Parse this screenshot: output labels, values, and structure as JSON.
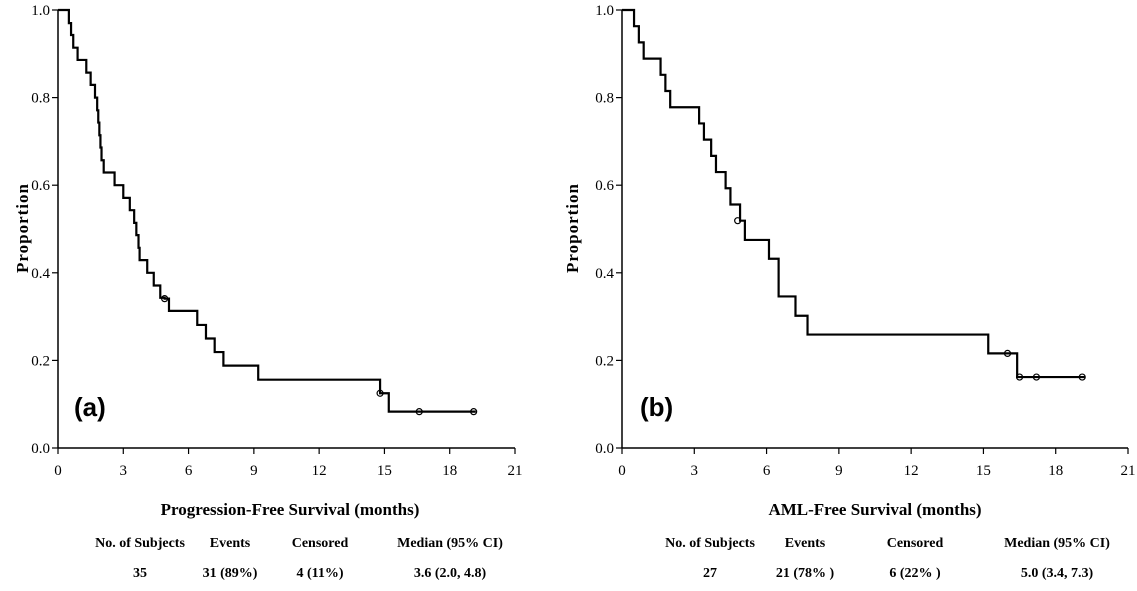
{
  "chart_data": [
    {
      "type": "line",
      "panel_label": "(a)",
      "xlabel": "Progression-Free Survival (months)",
      "ylabel": "Proportion",
      "xlim": [
        0,
        21
      ],
      "ylim": [
        0,
        1
      ],
      "xticks": [
        "0",
        "3",
        "6",
        "9",
        "12",
        "15",
        "18",
        "21"
      ],
      "yticks": [
        "0.0",
        "0.2",
        "0.4",
        "0.6",
        "0.8",
        "1.0"
      ],
      "steps": [
        [
          0,
          1.0
        ],
        [
          0.5,
          0.97
        ],
        [
          0.6,
          0.943
        ],
        [
          0.7,
          0.914
        ],
        [
          0.9,
          0.886
        ],
        [
          1.3,
          0.857
        ],
        [
          1.5,
          0.829
        ],
        [
          1.7,
          0.8
        ],
        [
          1.8,
          0.771
        ],
        [
          1.85,
          0.743
        ],
        [
          1.9,
          0.714
        ],
        [
          1.95,
          0.686
        ],
        [
          2.0,
          0.657
        ],
        [
          2.1,
          0.629
        ],
        [
          2.6,
          0.6
        ],
        [
          3.0,
          0.571
        ],
        [
          3.3,
          0.543
        ],
        [
          3.5,
          0.514
        ],
        [
          3.6,
          0.486
        ],
        [
          3.7,
          0.457
        ],
        [
          3.75,
          0.429
        ],
        [
          4.1,
          0.4
        ],
        [
          4.4,
          0.371
        ],
        [
          4.7,
          0.343
        ],
        [
          4.9,
          0.341
        ],
        [
          5.1,
          0.313
        ],
        [
          6.4,
          0.281
        ],
        [
          6.8,
          0.25
        ],
        [
          7.2,
          0.219
        ],
        [
          7.6,
          0.188
        ],
        [
          9.2,
          0.156
        ],
        [
          14.8,
          0.125
        ],
        [
          15.2,
          0.083
        ],
        [
          19.2,
          0.083
        ]
      ],
      "censored": [
        [
          4.9,
          0.341
        ],
        [
          14.8,
          0.125
        ],
        [
          16.6,
          0.083
        ],
        [
          19.1,
          0.083
        ]
      ],
      "stats": {
        "headers": [
          "No. of Subjects",
          "Events",
          "Censored",
          "Median (95% CI)"
        ],
        "values": [
          "35",
          "31 (89%)",
          "4 (11%)",
          "3.6 (2.0, 4.8)"
        ]
      }
    },
    {
      "type": "line",
      "panel_label": "(b)",
      "xlabel": "AML-Free Survival (months)",
      "ylabel": "Proportion",
      "xlim": [
        0,
        21
      ],
      "ylim": [
        0,
        1
      ],
      "xticks": [
        "0",
        "3",
        "6",
        "9",
        "12",
        "15",
        "18",
        "21"
      ],
      "yticks": [
        "0.0",
        "0.2",
        "0.4",
        "0.6",
        "0.8",
        "1.0"
      ],
      "steps": [
        [
          0,
          1.0
        ],
        [
          0.5,
          0.963
        ],
        [
          0.7,
          0.926
        ],
        [
          0.9,
          0.889
        ],
        [
          1.6,
          0.852
        ],
        [
          1.8,
          0.815
        ],
        [
          2.0,
          0.778
        ],
        [
          3.2,
          0.741
        ],
        [
          3.4,
          0.704
        ],
        [
          3.7,
          0.667
        ],
        [
          3.9,
          0.63
        ],
        [
          4.3,
          0.593
        ],
        [
          4.5,
          0.556
        ],
        [
          4.9,
          0.519
        ],
        [
          5.1,
          0.475
        ],
        [
          6.1,
          0.432
        ],
        [
          6.5,
          0.346
        ],
        [
          7.2,
          0.302
        ],
        [
          7.7,
          0.259
        ],
        [
          15.2,
          0.216
        ],
        [
          16.4,
          0.162
        ],
        [
          19.2,
          0.162
        ]
      ],
      "censored": [
        [
          4.8,
          0.519
        ],
        [
          16.0,
          0.216
        ],
        [
          16.5,
          0.162
        ],
        [
          17.2,
          0.162
        ],
        [
          19.1,
          0.162
        ]
      ],
      "stats": {
        "headers": [
          "No. of Subjects",
          "Events",
          "Censored",
          "Median (95%  CI)"
        ],
        "values": [
          "27",
          "21 (78% )",
          "6 (22% )",
          "5.0 (3.4, 7.3)"
        ]
      }
    }
  ]
}
